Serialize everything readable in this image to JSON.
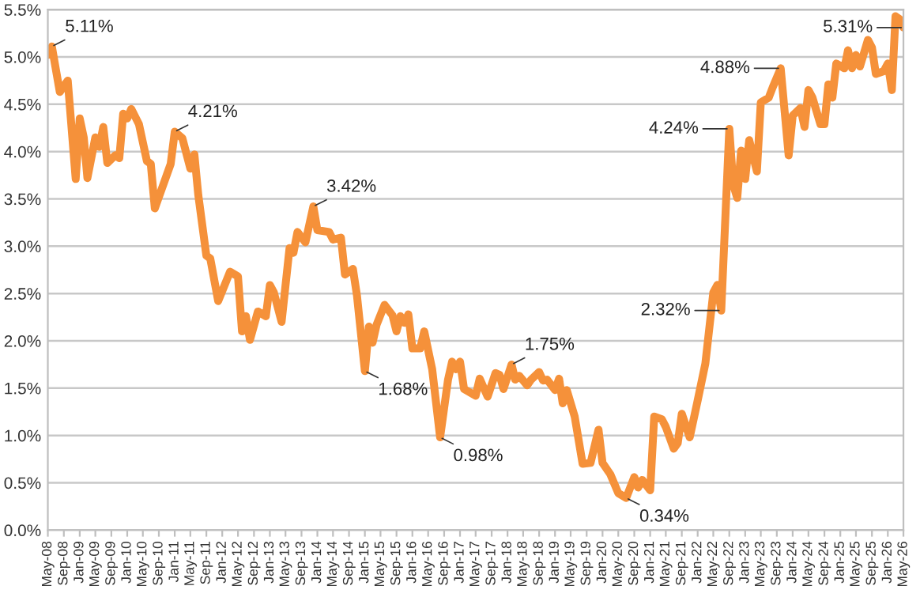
{
  "chart_data": {
    "type": "line",
    "series": [
      {
        "color": "#f5913a",
        "x": [
          "2008-05",
          "2008-06",
          "2008-08",
          "2008-10",
          "2008-12",
          "2009-01",
          "2009-02",
          "2009-03",
          "2009-05",
          "2009-06",
          "2009-07",
          "2009-08",
          "2009-10",
          "2009-11",
          "2009-12",
          "2010-01",
          "2010-02",
          "2010-04",
          "2010-06",
          "2010-07",
          "2010-08",
          "2010-12",
          "2011-01",
          "2011-03",
          "2011-05",
          "2011-06",
          "2011-07",
          "2011-09",
          "2011-10",
          "2011-12",
          "2012-03",
          "2012-05",
          "2012-06",
          "2012-07",
          "2012-08",
          "2012-10",
          "2012-12",
          "2013-01",
          "2013-02",
          "2013-04",
          "2013-06",
          "2013-07",
          "2013-08",
          "2013-10",
          "2013-12",
          "2014-01",
          "2014-04",
          "2014-05",
          "2014-07",
          "2014-08",
          "2014-10",
          "2014-11",
          "2015-01",
          "2015-02",
          "2015-03",
          "2015-04",
          "2015-06",
          "2015-08",
          "2015-09",
          "2015-10",
          "2015-11",
          "2015-12",
          "2016-01",
          "2016-03",
          "2016-04",
          "2016-06",
          "2016-08",
          "2016-10",
          "2016-11",
          "2016-12",
          "2017-01",
          "2017-02",
          "2017-05",
          "2017-06",
          "2017-08",
          "2017-10",
          "2017-11",
          "2017-12",
          "2018-02",
          "2018-03",
          "2018-04",
          "2018-06",
          "2018-07",
          "2018-09",
          "2018-10",
          "2018-11",
          "2019-01",
          "2019-02",
          "2019-03",
          "2019-04",
          "2019-06",
          "2019-08",
          "2019-10",
          "2019-12",
          "2020-01",
          "2020-03",
          "2020-05",
          "2020-07",
          "2020-09",
          "2020-10",
          "2020-11",
          "2021-01",
          "2021-02",
          "2021-04",
          "2021-05",
          "2021-07",
          "2021-08",
          "2021-09",
          "2021-11",
          "2022-01",
          "2022-03",
          "2022-05",
          "2022-06",
          "2022-07",
          "2022-09",
          "2022-10",
          "2022-11",
          "2022-12",
          "2023-01",
          "2023-02",
          "2023-04",
          "2023-05",
          "2023-07",
          "2023-08",
          "2023-10",
          "2023-12",
          "2024-01",
          "2024-03",
          "2024-04",
          "2024-05",
          "2024-06",
          "2024-08",
          "2024-09",
          "2024-10",
          "2024-11",
          "2024-12",
          "2025-02",
          "2025-03",
          "2025-04",
          "2025-05",
          "2025-06",
          "2025-08",
          "2025-09",
          "2025-10",
          "2025-12",
          "2026-01",
          "2026-02",
          "2026-03",
          "2026-04",
          "2026-05"
        ],
        "values": [
          5.02,
          5.11,
          4.63,
          4.75,
          3.71,
          4.35,
          4.15,
          3.72,
          4.15,
          4.05,
          4.26,
          3.88,
          3.96,
          3.93,
          4.4,
          4.35,
          4.45,
          4.29,
          3.9,
          3.87,
          3.4,
          3.87,
          4.21,
          4.14,
          3.82,
          3.97,
          3.54,
          2.9,
          2.87,
          2.42,
          2.73,
          2.68,
          2.1,
          2.26,
          2.01,
          2.31,
          2.26,
          2.59,
          2.51,
          2.2,
          2.98,
          2.93,
          3.15,
          3.04,
          3.42,
          3.17,
          3.15,
          3.07,
          3.09,
          2.7,
          2.76,
          2.48,
          1.68,
          2.15,
          1.98,
          2.17,
          2.38,
          2.27,
          2.1,
          2.26,
          2.19,
          2.28,
          1.92,
          1.92,
          2.1,
          1.7,
          0.98,
          1.59,
          1.78,
          1.7,
          1.78,
          1.49,
          1.42,
          1.6,
          1.41,
          1.66,
          1.64,
          1.49,
          1.75,
          1.59,
          1.63,
          1.53,
          1.59,
          1.67,
          1.58,
          1.59,
          1.48,
          1.6,
          1.34,
          1.48,
          1.2,
          0.7,
          0.71,
          1.06,
          0.71,
          0.59,
          0.39,
          0.34,
          0.56,
          0.45,
          0.53,
          0.42,
          1.2,
          1.17,
          1.09,
          0.86,
          0.92,
          1.23,
          0.98,
          1.37,
          1.76,
          2.51,
          2.59,
          2.32,
          4.24,
          3.65,
          3.51,
          4.01,
          3.71,
          4.12,
          3.79,
          4.52,
          4.57,
          4.68,
          4.88,
          3.96,
          4.38,
          4.46,
          4.26,
          4.65,
          4.57,
          4.29,
          4.29,
          4.71,
          4.57,
          4.93,
          4.88,
          5.07,
          4.88,
          5.02,
          4.9,
          5.18,
          5.1,
          4.82,
          4.85,
          4.93,
          4.65,
          5.43,
          5.4,
          5.31
        ]
      }
    ],
    "annotations": [
      {
        "text": "5.11%",
        "x": "2008-06",
        "y": 5.11
      },
      {
        "text": "4.21%",
        "x": "2011-01",
        "y": 4.21
      },
      {
        "text": "3.42%",
        "x": "2013-12",
        "y": 3.42
      },
      {
        "text": "1.68%",
        "x": "2015-01",
        "y": 1.68
      },
      {
        "text": "0.98%",
        "x": "2016-08",
        "y": 0.98
      },
      {
        "text": "1.75%",
        "x": "2018-02",
        "y": 1.75
      },
      {
        "text": "0.34%",
        "x": "2020-07",
        "y": 0.34
      },
      {
        "text": "2.32%",
        "x": "2022-07",
        "y": 2.32
      },
      {
        "text": "4.24%",
        "x": "2022-09",
        "y": 4.24
      },
      {
        "text": "4.88%",
        "x": "2023-10",
        "y": 4.88
      },
      {
        "text": "5.31%",
        "x": "2026-05",
        "y": 5.31
      }
    ],
    "xlim": [
      "2008-05",
      "2026-05"
    ],
    "xticks": [
      {
        "value": "2008-05",
        "label": "May-08"
      },
      {
        "value": "2008-09",
        "label": "Sep-08"
      },
      {
        "value": "2009-01",
        "label": "Jan-09"
      },
      {
        "value": "2009-05",
        "label": "May-09"
      },
      {
        "value": "2009-09",
        "label": "Sep-09"
      },
      {
        "value": "2010-01",
        "label": "Jan-10"
      },
      {
        "value": "2010-05",
        "label": "May-10"
      },
      {
        "value": "2010-09",
        "label": "Sep-10"
      },
      {
        "value": "2011-01",
        "label": "Jan-11"
      },
      {
        "value": "2011-05",
        "label": "May-11"
      },
      {
        "value": "2011-09",
        "label": "Sep-11"
      },
      {
        "value": "2012-01",
        "label": "Jan-12"
      },
      {
        "value": "2012-05",
        "label": "May-12"
      },
      {
        "value": "2012-09",
        "label": "Sep-12"
      },
      {
        "value": "2013-01",
        "label": "Jan-13"
      },
      {
        "value": "2013-05",
        "label": "May-13"
      },
      {
        "value": "2013-09",
        "label": "Sep-13"
      },
      {
        "value": "2014-01",
        "label": "Jan-14"
      },
      {
        "value": "2014-05",
        "label": "May-14"
      },
      {
        "value": "2014-09",
        "label": "Sep-14"
      },
      {
        "value": "2015-01",
        "label": "Jan-15"
      },
      {
        "value": "2015-05",
        "label": "May-15"
      },
      {
        "value": "2015-09",
        "label": "Sep-15"
      },
      {
        "value": "2016-01",
        "label": "Jan-16"
      },
      {
        "value": "2016-05",
        "label": "May-16"
      },
      {
        "value": "2016-09",
        "label": "Sep-16"
      },
      {
        "value": "2017-01",
        "label": "Jan-17"
      },
      {
        "value": "2017-05",
        "label": "May-17"
      },
      {
        "value": "2017-09",
        "label": "Sep-17"
      },
      {
        "value": "2018-01",
        "label": "Jan-18"
      },
      {
        "value": "2018-05",
        "label": "May-18"
      },
      {
        "value": "2018-09",
        "label": "Sep-18"
      },
      {
        "value": "2019-01",
        "label": "Jan-19"
      },
      {
        "value": "2019-05",
        "label": "May-19"
      },
      {
        "value": "2019-09",
        "label": "Sep-19"
      },
      {
        "value": "2020-01",
        "label": "Jan-20"
      },
      {
        "value": "2020-05",
        "label": "May-20"
      },
      {
        "value": "2020-09",
        "label": "Sep-20"
      },
      {
        "value": "2021-01",
        "label": "Jan-21"
      },
      {
        "value": "2021-05",
        "label": "May-21"
      },
      {
        "value": "2021-09",
        "label": "Sep-21"
      },
      {
        "value": "2022-01",
        "label": "Jan-22"
      },
      {
        "value": "2022-05",
        "label": "May-22"
      },
      {
        "value": "2022-09",
        "label": "Sep-22"
      },
      {
        "value": "2023-01",
        "label": "Jan-23"
      },
      {
        "value": "2023-05",
        "label": "May-23"
      },
      {
        "value": "2023-09",
        "label": "Sep-23"
      },
      {
        "value": "2024-01",
        "label": "Jan-24"
      },
      {
        "value": "2024-05",
        "label": "May-24"
      },
      {
        "value": "2024-09",
        "label": "Sep-24"
      },
      {
        "value": "2025-01",
        "label": "Jan-25"
      },
      {
        "value": "2025-05",
        "label": "May-25"
      },
      {
        "value": "2025-09",
        "label": "Sep-25"
      },
      {
        "value": "2026-01",
        "label": "Jan-26"
      },
      {
        "value": "2026-05",
        "label": "May-26"
      }
    ],
    "ylim": [
      0,
      5.5
    ],
    "yticks": [
      {
        "value": 0,
        "label": "0.0%"
      },
      {
        "value": 0.5,
        "label": "0.5%"
      },
      {
        "value": 1,
        "label": "1.0%"
      },
      {
        "value": 1.5,
        "label": "1.5%"
      },
      {
        "value": 2,
        "label": "2.0%"
      },
      {
        "value": 2.5,
        "label": "2.5%"
      },
      {
        "value": 3,
        "label": "3.0%"
      },
      {
        "value": 3.5,
        "label": "3.5%"
      },
      {
        "value": 4,
        "label": "4.0%"
      },
      {
        "value": 4.5,
        "label": "4.5%"
      },
      {
        "value": 5,
        "label": "5.0%"
      },
      {
        "value": 5.5,
        "label": "5.5%"
      }
    ],
    "grid": "y",
    "marker": "none",
    "line_style": "solid"
  }
}
